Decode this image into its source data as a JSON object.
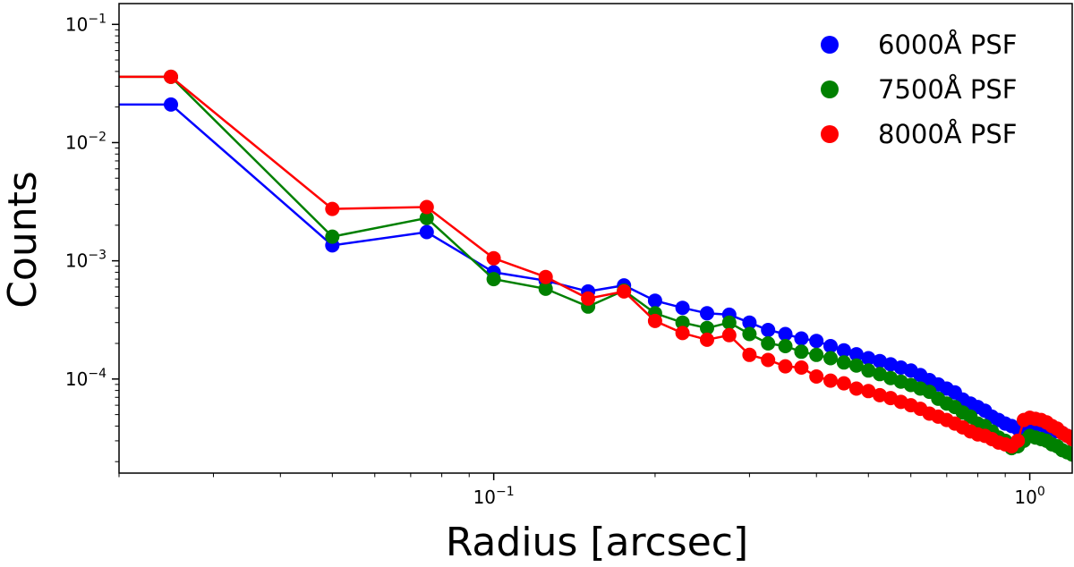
{
  "chart_data": {
    "type": "line",
    "title": "",
    "xlabel": "Radius [arcsec]",
    "ylabel": "Counts",
    "xscale": "log",
    "yscale": "log",
    "xlim": [
      0.02,
      1.2
    ],
    "ylim": [
      1.6e-05,
      0.15
    ],
    "grid": false,
    "legend_position": "top-right",
    "x_tick_labels": [
      {
        "value": 0.1,
        "base": "10",
        "exp": "−1"
      },
      {
        "value": 1,
        "base": "10",
        "exp": "0"
      }
    ],
    "y_tick_labels": [
      {
        "value": 0.1,
        "base": "10",
        "exp": "−1"
      },
      {
        "value": 0.01,
        "base": "10",
        "exp": "−2"
      },
      {
        "value": 0.001,
        "base": "10",
        "exp": "−3"
      },
      {
        "value": 0.0001,
        "base": "10",
        "exp": "−4"
      }
    ],
    "series": [
      {
        "name": "6000Å PSF",
        "color": "#0000ff",
        "points": [
          [
            0.02,
            0.021
          ],
          [
            0.025,
            0.021
          ],
          [
            0.05,
            0.00135
          ],
          [
            0.075,
            0.00175
          ],
          [
            0.1,
            0.0008
          ],
          [
            0.125,
            0.00068
          ],
          [
            0.15,
            0.00055
          ],
          [
            0.175,
            0.00062
          ],
          [
            0.2,
            0.00046
          ],
          [
            0.225,
            0.0004
          ],
          [
            0.25,
            0.00036
          ],
          [
            0.275,
            0.00035
          ],
          [
            0.3,
            0.0003
          ],
          [
            0.325,
            0.00026
          ],
          [
            0.35,
            0.00024
          ],
          [
            0.375,
            0.00022
          ],
          [
            0.4,
            0.00021
          ],
          [
            0.425,
            0.00019
          ],
          [
            0.45,
            0.000175
          ],
          [
            0.475,
            0.000162
          ],
          [
            0.5,
            0.00015
          ],
          [
            0.525,
            0.000142
          ],
          [
            0.55,
            0.000133
          ],
          [
            0.575,
            0.000125
          ],
          [
            0.6,
            0.000118
          ],
          [
            0.625,
            0.000108
          ],
          [
            0.65,
            9.8e-05
          ],
          [
            0.675,
            9e-05
          ],
          [
            0.7,
            8.3e-05
          ],
          [
            0.725,
            7.7e-05
          ],
          [
            0.75,
            6.7e-05
          ],
          [
            0.775,
            6.2e-05
          ],
          [
            0.8,
            5.8e-05
          ],
          [
            0.825,
            5.4e-05
          ],
          [
            0.85,
            4.8e-05
          ],
          [
            0.875,
            4.5e-05
          ],
          [
            0.9,
            4.2e-05
          ],
          [
            0.925,
            4e-05
          ],
          [
            0.95,
            3.8e-05
          ],
          [
            0.975,
            4e-05
          ],
          [
            1.0,
            4.3e-05
          ],
          [
            1.025,
            4.2e-05
          ],
          [
            1.05,
            4.1e-05
          ],
          [
            1.075,
            3.9e-05
          ],
          [
            1.1,
            3.8e-05
          ],
          [
            1.125,
            3.6e-05
          ],
          [
            1.15,
            3.5e-05
          ],
          [
            1.175,
            3.3e-05
          ],
          [
            1.2,
            3.1e-05
          ]
        ]
      },
      {
        "name": "7500Å PSF",
        "color": "#008000",
        "points": [
          [
            0.02,
            0.036
          ],
          [
            0.025,
            0.036
          ],
          [
            0.05,
            0.0016
          ],
          [
            0.075,
            0.0023
          ],
          [
            0.1,
            0.0007
          ],
          [
            0.125,
            0.00058
          ],
          [
            0.15,
            0.00041
          ],
          [
            0.175,
            0.00056
          ],
          [
            0.2,
            0.00036
          ],
          [
            0.225,
            0.0003
          ],
          [
            0.25,
            0.00027
          ],
          [
            0.275,
            0.0003
          ],
          [
            0.3,
            0.00024
          ],
          [
            0.325,
            0.0002
          ],
          [
            0.35,
            0.00019
          ],
          [
            0.375,
            0.00017
          ],
          [
            0.4,
            0.00016
          ],
          [
            0.425,
            0.00015
          ],
          [
            0.45,
            0.000138
          ],
          [
            0.475,
            0.00013
          ],
          [
            0.5,
            0.000118
          ],
          [
            0.525,
            0.00011
          ],
          [
            0.55,
            0.000102
          ],
          [
            0.575,
            9.5e-05
          ],
          [
            0.6,
            8.9e-05
          ],
          [
            0.625,
            8.3e-05
          ],
          [
            0.65,
            7.8e-05
          ],
          [
            0.675,
            6.8e-05
          ],
          [
            0.7,
            6.2e-05
          ],
          [
            0.725,
            5.8e-05
          ],
          [
            0.75,
            5.2e-05
          ],
          [
            0.775,
            4.8e-05
          ],
          [
            0.8,
            4.2e-05
          ],
          [
            0.825,
            4e-05
          ],
          [
            0.85,
            3.6e-05
          ],
          [
            0.875,
            3.2e-05
          ],
          [
            0.9,
            3e-05
          ],
          [
            0.925,
            2.6e-05
          ],
          [
            0.95,
            2.7e-05
          ],
          [
            0.975,
            3e-05
          ],
          [
            1.0,
            3.3e-05
          ],
          [
            1.025,
            3.2e-05
          ],
          [
            1.05,
            3.1e-05
          ],
          [
            1.075,
            3e-05
          ],
          [
            1.1,
            2.8e-05
          ],
          [
            1.125,
            2.7e-05
          ],
          [
            1.15,
            2.5e-05
          ],
          [
            1.175,
            2.4e-05
          ],
          [
            1.2,
            2.3e-05
          ]
        ]
      },
      {
        "name": "8000Å PSF",
        "color": "#ff0000",
        "points": [
          [
            0.02,
            0.036
          ],
          [
            0.025,
            0.036
          ],
          [
            0.05,
            0.00275
          ],
          [
            0.075,
            0.00285
          ],
          [
            0.1,
            0.00105
          ],
          [
            0.125,
            0.00073
          ],
          [
            0.15,
            0.00048
          ],
          [
            0.175,
            0.00055
          ],
          [
            0.2,
            0.00031
          ],
          [
            0.225,
            0.000245
          ],
          [
            0.25,
            0.000215
          ],
          [
            0.275,
            0.000235
          ],
          [
            0.3,
            0.00016
          ],
          [
            0.325,
            0.000145
          ],
          [
            0.35,
            0.000128
          ],
          [
            0.375,
            0.000125
          ],
          [
            0.4,
            0.000105
          ],
          [
            0.425,
            9.7e-05
          ],
          [
            0.45,
            9.2e-05
          ],
          [
            0.475,
            8.3e-05
          ],
          [
            0.5,
            7.9e-05
          ],
          [
            0.525,
            7.3e-05
          ],
          [
            0.55,
            6.9e-05
          ],
          [
            0.575,
            6.4e-05
          ],
          [
            0.6,
            6e-05
          ],
          [
            0.625,
            5.6e-05
          ],
          [
            0.65,
            5.1e-05
          ],
          [
            0.675,
            4.8e-05
          ],
          [
            0.7,
            4.5e-05
          ],
          [
            0.725,
            4.2e-05
          ],
          [
            0.75,
            3.9e-05
          ],
          [
            0.775,
            3.6e-05
          ],
          [
            0.8,
            3.4e-05
          ],
          [
            0.825,
            3.3e-05
          ],
          [
            0.85,
            3.1e-05
          ],
          [
            0.875,
            2.9e-05
          ],
          [
            0.9,
            2.8e-05
          ],
          [
            0.925,
            2.7e-05
          ],
          [
            0.95,
            3e-05
          ],
          [
            0.975,
            4.5e-05
          ],
          [
            1.0,
            4.7e-05
          ],
          [
            1.025,
            4.6e-05
          ],
          [
            1.05,
            4.5e-05
          ],
          [
            1.075,
            4.3e-05
          ],
          [
            1.1,
            4e-05
          ],
          [
            1.125,
            3.8e-05
          ],
          [
            1.15,
            3.5e-05
          ],
          [
            1.175,
            3.3e-05
          ],
          [
            1.2,
            3.1e-05
          ]
        ]
      }
    ]
  }
}
